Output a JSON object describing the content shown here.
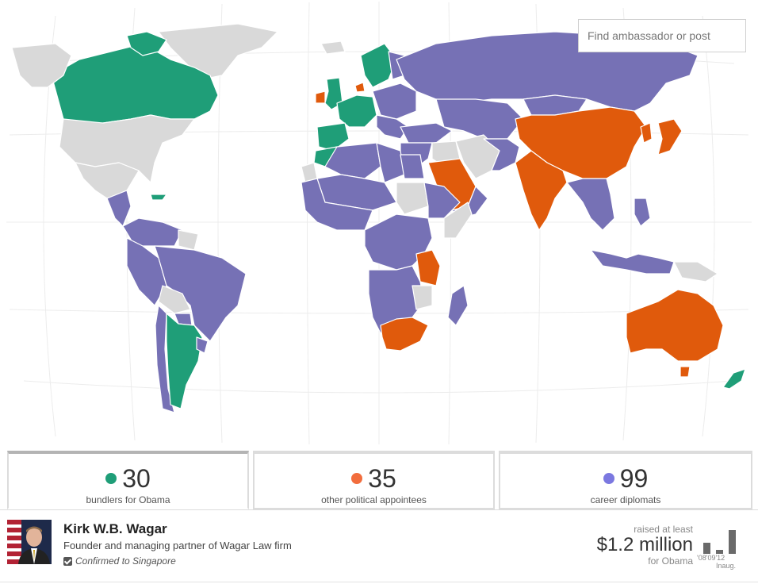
{
  "colors": {
    "bundler": "#1f9e78",
    "political": "#e05a0c",
    "career": "#7671b5",
    "none": "#d9d9d9",
    "dot_bundler": "#1f9e78",
    "dot_political": "#f26d3d",
    "dot_career": "#7b78e0"
  },
  "search": {
    "placeholder": "Find ambassador or post"
  },
  "tabs": [
    {
      "count": "30",
      "label": "bundlers for Obama",
      "category": "bundler"
    },
    {
      "count": "35",
      "label": "other political appointees",
      "category": "political"
    },
    {
      "count": "99",
      "label": "career diplomats",
      "category": "career"
    }
  ],
  "profile": {
    "name": "Kirk W.B. Wagar",
    "description": "Founder and managing partner of Wagar Law firm",
    "status": "Confirmed to Singapore",
    "raised_label": "raised at least",
    "amount": "$1.2 million",
    "for": "for Obama",
    "years": "'08'09'12",
    "inaug": "Inaug.",
    "mini_bars": [
      0.45,
      0.15,
      1.0
    ]
  },
  "map_regions": [
    {
      "name": "greenland",
      "category": "none"
    },
    {
      "name": "canada",
      "category": "bundler"
    },
    {
      "name": "canada-islands",
      "category": "bundler"
    },
    {
      "name": "usa",
      "category": "none"
    },
    {
      "name": "alaska",
      "category": "none"
    },
    {
      "name": "mexico",
      "category": "none"
    },
    {
      "name": "central-america",
      "category": "career"
    },
    {
      "name": "caribbean",
      "category": "bundler"
    },
    {
      "name": "colombia-venezuela",
      "category": "career"
    },
    {
      "name": "guianas",
      "category": "none"
    },
    {
      "name": "ecuador-peru",
      "category": "career"
    },
    {
      "name": "brazil",
      "category": "career"
    },
    {
      "name": "bolivia",
      "category": "none"
    },
    {
      "name": "paraguay",
      "category": "career"
    },
    {
      "name": "chile",
      "category": "career"
    },
    {
      "name": "argentina",
      "category": "bundler"
    },
    {
      "name": "uruguay",
      "category": "career"
    },
    {
      "name": "iceland",
      "category": "none"
    },
    {
      "name": "ireland",
      "category": "political"
    },
    {
      "name": "uk",
      "category": "bundler"
    },
    {
      "name": "scandinavia",
      "category": "bundler"
    },
    {
      "name": "denmark",
      "category": "political"
    },
    {
      "name": "finland",
      "category": "career"
    },
    {
      "name": "western-europe",
      "category": "bundler"
    },
    {
      "name": "iberia",
      "category": "bundler"
    },
    {
      "name": "eastern-europe",
      "category": "career"
    },
    {
      "name": "balkans",
      "category": "career"
    },
    {
      "name": "turkey",
      "category": "career"
    },
    {
      "name": "russia",
      "category": "career"
    },
    {
      "name": "kazakhstan-central-asia",
      "category": "career"
    },
    {
      "name": "mongolia",
      "category": "career"
    },
    {
      "name": "china",
      "category": "political"
    },
    {
      "name": "korea-japan",
      "category": "political"
    },
    {
      "name": "middle-east",
      "category": "career"
    },
    {
      "name": "syria-iraq",
      "category": "none"
    },
    {
      "name": "saudi-arabia",
      "category": "political"
    },
    {
      "name": "yemen-oman",
      "category": "career"
    },
    {
      "name": "iran",
      "category": "none"
    },
    {
      "name": "afghanistan-pakistan",
      "category": "career"
    },
    {
      "name": "india",
      "category": "political"
    },
    {
      "name": "myanmar-sea",
      "category": "career"
    },
    {
      "name": "indonesia",
      "category": "career"
    },
    {
      "name": "philippines",
      "category": "career"
    },
    {
      "name": "papua-new-guinea",
      "category": "none"
    },
    {
      "name": "australia",
      "category": "political"
    },
    {
      "name": "tasmania",
      "category": "political"
    },
    {
      "name": "new-zealand",
      "category": "bundler"
    },
    {
      "name": "morocco",
      "category": "bundler"
    },
    {
      "name": "western-sahara",
      "category": "none"
    },
    {
      "name": "north-africa",
      "category": "career"
    },
    {
      "name": "libya",
      "category": "career"
    },
    {
      "name": "egypt",
      "category": "career"
    },
    {
      "name": "sudan",
      "category": "none"
    },
    {
      "name": "sahel",
      "category": "career"
    },
    {
      "name": "west-africa",
      "category": "career"
    },
    {
      "name": "horn-of-africa",
      "category": "career"
    },
    {
      "name": "somalia",
      "category": "none"
    },
    {
      "name": "central-africa",
      "category": "career"
    },
    {
      "name": "tanzania",
      "category": "political"
    },
    {
      "name": "southern-africa",
      "category": "career"
    },
    {
      "name": "zimbabwe",
      "category": "none"
    },
    {
      "name": "south-africa",
      "category": "political"
    },
    {
      "name": "madagascar",
      "category": "career"
    }
  ]
}
